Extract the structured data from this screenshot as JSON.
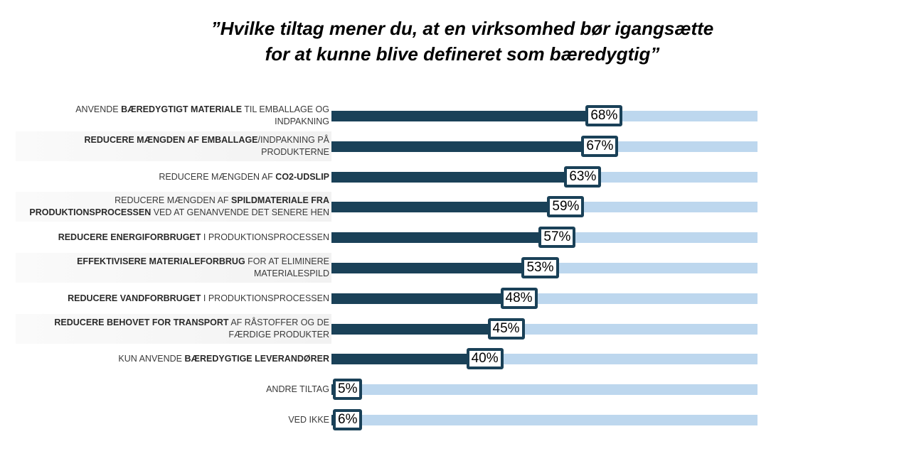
{
  "chart_data": {
    "type": "bar",
    "orientation": "horizontal",
    "title": "”Hvilke tiltag mener du, at en virksomhed bør igangsætte for at kunne blive defineret som bæredygtig”",
    "title_lines": [
      "”Hvilke tiltag mener du, at en virksomhed bør igangsætte",
      "for at kunne blive defineret som bæredygtig”"
    ],
    "xlabel": "",
    "ylabel": "",
    "xlim": [
      0,
      100
    ],
    "grid": false,
    "legend": "none",
    "value_suffix": "%",
    "colors": {
      "bar": "#1a4158",
      "track": "#bdd7ee",
      "label_box_border": "#1a4158"
    },
    "categories": [
      "ANVENDE BÆREDYGTIGT MATERIALE TIL EMBALLAGE OG INDPAKNING",
      "REDUCERE MÆNGDEN AF EMBALLAGE/INDPAKNING PÅ PRODUKTERNE",
      "REDUCERE MÆNGDEN AF CO2-UDSLIP",
      "REDUCERE MÆNGDEN AF SPILDMATERIALE FRA PRODUKTIONSPROCESSEN VED AT GENANVENDE DET SENERE HEN",
      "REDUCERE ENERGIFORBRUGET I PRODUKTIONSPROCESSEN",
      "EFFEKTIVISERE MATERIALEFORBRUG FOR AT ELIMINERE MATERIALESPILD",
      "REDUCERE VANDFORBRUGET I PRODUKTIONSPROCESSEN",
      "REDUCERE BEHOVET FOR TRANSPORT AF RÅSTOFFER OG DE FÆRDIGE PRODUKTER",
      "KUN ANVENDE BÆREDYGTIGE LEVERANDØRER",
      "ANDRE TILTAG",
      "VED IKKE"
    ],
    "values": [
      68,
      67,
      63,
      59,
      57,
      53,
      48,
      45,
      40,
      5,
      6
    ],
    "value_labels": [
      "68%",
      "67%",
      "63%",
      "59%",
      "57%",
      "53%",
      "48%",
      "45%",
      "40%",
      "5%",
      "6%"
    ],
    "category_label_runs": [
      [
        {
          "t": "ANVENDE ",
          "b": false
        },
        {
          "t": "BÆREDYGTIGT MATERIALE",
          "b": true
        },
        {
          "t": " TIL EMBALLAGE OG",
          "b": false
        },
        {
          "br": true
        },
        {
          "t": "INDPAKNING",
          "b": false
        }
      ],
      [
        {
          "t": "REDUCERE MÆNGDEN AF EMBALLAGE",
          "b": true
        },
        {
          "t": "/INDPAKNING PÅ",
          "b": false
        },
        {
          "br": true
        },
        {
          "t": "PRODUKTERNE",
          "b": false
        }
      ],
      [
        {
          "t": "REDUCERE MÆNGDEN AF ",
          "b": false
        },
        {
          "t": "CO2-UDSLIP",
          "b": true
        }
      ],
      [
        {
          "t": "REDUCERE MÆNGDEN AF ",
          "b": false
        },
        {
          "t": "SPILDMATERIALE FRA",
          "b": true
        },
        {
          "br": true
        },
        {
          "t": "PRODUKTIONSPROCESSEN",
          "b": true
        },
        {
          "t": " VED AT GENANVENDE DET SENERE HEN",
          "b": false
        }
      ],
      [
        {
          "t": "REDUCERE ENERGIFORBRUGET",
          "b": true
        },
        {
          "t": " I PRODUKTIONSPROCESSEN",
          "b": false
        }
      ],
      [
        {
          "t": "EFFEKTIVISERE MATERIALEFORBRUG",
          "b": true
        },
        {
          "t": " FOR AT ELIMINERE",
          "b": false
        },
        {
          "br": true
        },
        {
          "t": "MATERIALESPILD",
          "b": false
        }
      ],
      [
        {
          "t": "REDUCERE VANDFORBRUGET",
          "b": true
        },
        {
          "t": " I PRODUKTIONSPROCESSEN",
          "b": false
        }
      ],
      [
        {
          "t": "REDUCERE BEHOVET FOR TRANSPORT",
          "b": true
        },
        {
          "t": " AF RÅSTOFFER OG DE",
          "b": false
        },
        {
          "br": true
        },
        {
          "t": "FÆRDIGE PRODUKTER",
          "b": false
        }
      ],
      [
        {
          "t": "KUN ANVENDE  ",
          "b": false
        },
        {
          "t": "BÆREDYGTIGE LEVERANDØRER",
          "b": true
        }
      ],
      [
        {
          "t": "ANDRE TILTAG",
          "b": false
        }
      ],
      [
        {
          "t": "VED IKKE",
          "b": false
        }
      ]
    ],
    "shaded_rows": [
      1,
      3,
      5,
      7
    ]
  }
}
